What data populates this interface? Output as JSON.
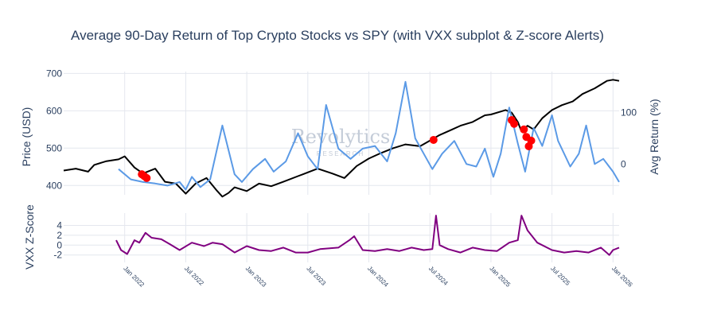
{
  "chart_data": [
    {
      "type": "line",
      "title": "Average 90-Day Return of Top Crypto Stocks vs SPY (with VXX subplot & Z-score Alerts)",
      "ylabel": "Price (USD)",
      "y2label": "Avg Return (%)",
      "ylim": [
        375,
        705
      ],
      "y_ticks": [
        400,
        500,
        600,
        700
      ],
      "y2lim": [
        -60,
        180
      ],
      "y2_ticks": [
        0,
        100
      ],
      "x_range": [
        2021.5,
        2026.05
      ],
      "x_ticks": [
        2022.0,
        2022.5,
        2023.0,
        2023.5,
        2024.0,
        2024.5,
        2025.0,
        2025.5,
        2026.0
      ],
      "x_tick_labels": [
        "Jan 2022",
        "Jul 2022",
        "Jan 2023",
        "Jul 2023",
        "Jan 2024",
        "Jul 2024",
        "Jan 2025",
        "Jul 2025",
        "Jan 2026"
      ],
      "series": [
        {
          "name": "SPY",
          "axis": "left",
          "color": "#000000",
          "x": [
            2021.5,
            2021.6,
            2021.7,
            2021.75,
            2021.85,
            2021.95,
            2022.0,
            2022.08,
            2022.15,
            2022.25,
            2022.33,
            2022.42,
            2022.5,
            2022.58,
            2022.67,
            2022.75,
            2022.8,
            2022.85,
            2022.9,
            2023.0,
            2023.1,
            2023.2,
            2023.3,
            2023.42,
            2023.5,
            2023.58,
            2023.7,
            2023.8,
            2023.9,
            2024.0,
            2024.1,
            2024.2,
            2024.3,
            2024.42,
            2024.5,
            2024.58,
            2024.67,
            2024.75,
            2024.85,
            2024.95,
            2025.0,
            2025.08,
            2025.12,
            2025.17,
            2025.22,
            2025.25,
            2025.3,
            2025.35,
            2025.42,
            2025.5,
            2025.58,
            2025.67,
            2025.75,
            2025.85,
            2025.95,
            2026.0,
            2026.05
          ],
          "values": [
            440,
            445,
            437,
            455,
            465,
            470,
            478,
            448,
            432,
            445,
            410,
            405,
            378,
            405,
            420,
            388,
            370,
            380,
            395,
            385,
            405,
            398,
            410,
            425,
            435,
            445,
            432,
            420,
            452,
            472,
            487,
            500,
            510,
            505,
            520,
            535,
            548,
            560,
            570,
            588,
            590,
            598,
            602,
            595,
            570,
            545,
            560,
            550,
            580,
            602,
            615,
            625,
            645,
            660,
            680,
            683,
            680
          ]
        },
        {
          "name": "Avg Return (%)",
          "axis": "right",
          "color": "#5b9ae6",
          "x": [
            2021.95,
            2022.05,
            2022.15,
            2022.25,
            2022.35,
            2022.45,
            2022.5,
            2022.55,
            2022.62,
            2022.7,
            2022.8,
            2022.9,
            2022.96,
            2023.05,
            2023.15,
            2023.22,
            2023.32,
            2023.42,
            2023.5,
            2023.58,
            2023.65,
            2023.75,
            2023.85,
            2023.95,
            2024.05,
            2024.15,
            2024.22,
            2024.3,
            2024.38,
            2024.45,
            2024.52,
            2024.6,
            2024.7,
            2024.8,
            2024.88,
            2024.95,
            2025.02,
            2025.08,
            2025.15,
            2025.22,
            2025.28,
            2025.35,
            2025.42,
            2025.5,
            2025.55,
            2025.65,
            2025.72,
            2025.78,
            2025.85,
            2025.92,
            2026.0,
            2026.05
          ],
          "values": [
            -10,
            -30,
            -35,
            -38,
            -42,
            -35,
            -50,
            -25,
            -45,
            -30,
            75,
            -20,
            -35,
            -10,
            10,
            -15,
            5,
            60,
            15,
            -10,
            115,
            30,
            10,
            30,
            35,
            5,
            60,
            160,
            50,
            20,
            -10,
            20,
            45,
            0,
            -5,
            30,
            -25,
            20,
            110,
            40,
            -15,
            70,
            35,
            95,
            45,
            -5,
            20,
            75,
            0,
            10,
            -15,
            -35
          ]
        }
      ],
      "alerts": {
        "name": "Z-score Alerts",
        "color": "#ff0000",
        "x": [
          2022.14,
          2022.16,
          2022.18,
          2024.53,
          2025.17,
          2025.19,
          2025.27,
          2025.29,
          2025.31,
          2025.33
        ],
        "values": [
          430,
          425,
          420,
          522,
          575,
          565,
          550,
          530,
          505,
          520
        ]
      },
      "watermark": {
        "brand": "Revolytics",
        "sub": "RESEARCH"
      }
    },
    {
      "type": "line",
      "ylabel": "VXX Z-Score",
      "ylim": [
        -3.5,
        6.5
      ],
      "y_ticks": [
        -2,
        0,
        2,
        4
      ],
      "series": [
        {
          "name": "VXX Z-Score",
          "color": "#800080",
          "x": [
            2021.93,
            2021.97,
            2022.02,
            2022.08,
            2022.12,
            2022.17,
            2022.22,
            2022.3,
            2022.37,
            2022.45,
            2022.55,
            2022.65,
            2022.72,
            2022.8,
            2022.9,
            2023.0,
            2023.1,
            2023.2,
            2023.3,
            2023.4,
            2023.5,
            2023.6,
            2023.75,
            2023.84,
            2023.88,
            2023.95,
            2024.05,
            2024.15,
            2024.25,
            2024.35,
            2024.45,
            2024.52,
            2024.55,
            2024.58,
            2024.65,
            2024.75,
            2024.85,
            2024.95,
            2025.05,
            2025.15,
            2025.22,
            2025.25,
            2025.3,
            2025.38,
            2025.5,
            2025.6,
            2025.7,
            2025.8,
            2025.9,
            2025.97,
            2026.0,
            2026.05
          ],
          "values": [
            1.0,
            -1.0,
            -1.8,
            1.0,
            0.5,
            2.5,
            1.5,
            1.2,
            0.2,
            -1.0,
            0.5,
            -0.2,
            0.5,
            0.2,
            -1.5,
            -0.2,
            -1.0,
            -1.2,
            -0.5,
            -1.5,
            -1.5,
            -0.8,
            -0.5,
            1.0,
            1.8,
            -1.0,
            -1.2,
            -0.8,
            -1.2,
            -0.5,
            -1.0,
            -0.8,
            6.0,
            0.0,
            -0.8,
            -1.5,
            -0.5,
            -1.0,
            -1.2,
            0.5,
            1.0,
            6.0,
            3.0,
            0.5,
            -1.0,
            -1.5,
            -1.2,
            -1.5,
            -0.5,
            -2.0,
            -1.0,
            -0.5
          ]
        }
      ]
    }
  ]
}
